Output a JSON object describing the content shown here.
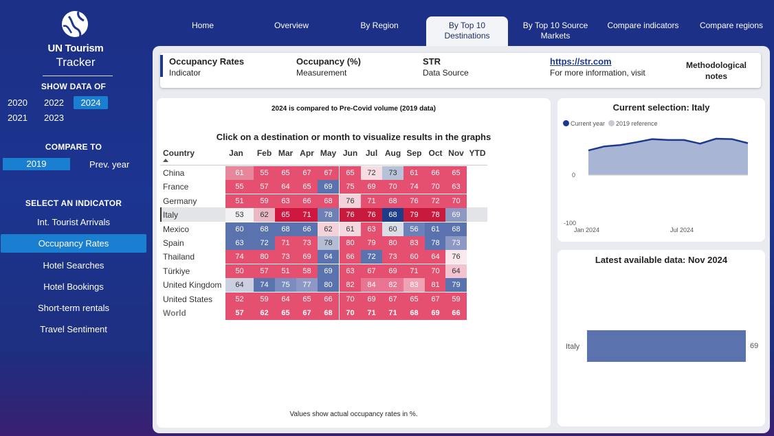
{
  "brand": {
    "line1": "UN Tourism",
    "line2": "Tracker"
  },
  "sidebar": {
    "show_data_title": "SHOW DATA OF",
    "years": [
      "2020",
      "2022",
      "2024",
      "2021",
      "2023"
    ],
    "active_year": "2024",
    "compare_title": "COMPARE TO",
    "compare_selected": "2019",
    "compare_alt": "Prev. year",
    "indicator_title": "SELECT AN INDICATOR",
    "indicators": [
      "Int. Tourist Arrivals",
      "Occupancy Rates",
      "Hotel Searches",
      "Hotel Bookings",
      "Short-term rentals",
      "Travel Sentiment"
    ],
    "active_indicator": "Occupancy Rates"
  },
  "nav": {
    "tabs": [
      "Home",
      "Overview",
      "By Region",
      "By Top 10 Destinations",
      "By Top 10 Source Markets",
      "Compare indicators",
      "Compare regions"
    ],
    "active_tab": "By Top 10 Destinations"
  },
  "info": {
    "indicator_value": "Occupancy Rates",
    "indicator_label": "Indicator",
    "measurement_value": "Occupancy (%)",
    "measurement_label": "Measurement",
    "source_value": "STR",
    "source_label": "Data Source",
    "link_text": "https://str.com",
    "link_label": "For more information, visit",
    "notes_button": "Methodological notes"
  },
  "table": {
    "subnote": "2024 is compared to Pre-Covid volume (2019 data)",
    "heading": "Click on a destination or month to visualize results in the graphs",
    "footnote": "Values show actual occupancy rates in %.",
    "country_header": "Country",
    "months": [
      "Jan",
      "Feb",
      "Mar",
      "Apr",
      "May",
      "Jun",
      "Jul",
      "Aug",
      "Sep",
      "Oct",
      "Nov",
      "YTD"
    ],
    "selected_country": "Italy",
    "rows": [
      {
        "country": "China",
        "values": [
          61,
          55,
          65,
          67,
          67,
          65,
          72,
          73,
          61,
          66,
          65
        ],
        "colors": [
          "#e6879c",
          "#e54f70",
          "#e54f70",
          "#e54f70",
          "#e54f70",
          "#e54f70",
          "#f6dde3",
          "#b7c2d8",
          "#e54f70",
          "#e54f70",
          "#e54f70"
        ]
      },
      {
        "country": "France",
        "values": [
          55,
          57,
          64,
          65,
          69,
          75,
          69,
          70,
          74,
          70,
          63
        ],
        "colors": [
          "#e54f70",
          "#e54f70",
          "#e54f70",
          "#e54f70",
          "#5a73ae",
          "#e54f70",
          "#e54f70",
          "#e54f70",
          "#e54f70",
          "#e54f70",
          "#e54f70"
        ]
      },
      {
        "country": "Germany",
        "values": [
          51,
          59,
          63,
          66,
          68,
          76,
          71,
          68,
          76,
          72,
          70
        ],
        "colors": [
          "#e54f70",
          "#e54f70",
          "#e54f70",
          "#e54f70",
          "#e54f70",
          "#f3d2da",
          "#e54f70",
          "#e54f70",
          "#e54f70",
          "#e54f70",
          "#e54f70"
        ]
      },
      {
        "country": "Italy",
        "values": [
          53,
          62,
          65,
          71,
          78,
          76,
          76,
          68,
          79,
          78,
          69
        ],
        "colors": [
          "#f2f2f4",
          "#e8b8c4",
          "#d0173f",
          "#d0173f",
          "#6f80b7",
          "#c81a3c",
          "#c81a3c",
          "#1d3d8a",
          "#c81a3c",
          "#c81a3c",
          "#8d98c4"
        ]
      },
      {
        "country": "Mexico",
        "values": [
          60,
          68,
          68,
          66,
          62,
          61,
          63,
          60,
          56,
          61,
          68
        ],
        "colors": [
          "#5a73ae",
          "#5a73ae",
          "#5a73ae",
          "#5a73ae",
          "#f4d2da",
          "#f5d8df",
          "#e54f70",
          "#dcdee6",
          "#6b81b9",
          "#5a73ae",
          "#5a73ae"
        ]
      },
      {
        "country": "Spain",
        "values": [
          63,
          72,
          71,
          73,
          78,
          80,
          79,
          80,
          83,
          78,
          73
        ],
        "colors": [
          "#5a73ae",
          "#5a73ae",
          "#e54f70",
          "#e54f70",
          "#b5bdd6",
          "#e54f70",
          "#e54f70",
          "#e54f70",
          "#e54f70",
          "#5a73ae",
          "#8d98c4"
        ]
      },
      {
        "country": "Thailand",
        "values": [
          74,
          80,
          73,
          69,
          64,
          66,
          72,
          73,
          60,
          64,
          76
        ],
        "colors": [
          "#e54f70",
          "#e54f70",
          "#e54f70",
          "#e54f70",
          "#5a73ae",
          "#e54f70",
          "#5a73ae",
          "#e54f70",
          "#e54f70",
          "#e54f70",
          "#f9e9ed"
        ]
      },
      {
        "country": "Türkiye",
        "values": [
          50,
          57,
          51,
          58,
          69,
          63,
          67,
          69,
          71,
          70,
          64
        ],
        "colors": [
          "#e54f70",
          "#e54f70",
          "#e54f70",
          "#e54f70",
          "#5a73ae",
          "#e54f70",
          "#e54f70",
          "#e54f70",
          "#e54f70",
          "#e54f70",
          "#f3c3cf"
        ]
      },
      {
        "country": "United Kingdom",
        "values": [
          64,
          74,
          75,
          77,
          80,
          82,
          84,
          82,
          83,
          81,
          79
        ],
        "colors": [
          "#cbd0e0",
          "#5a73ae",
          "#7b8cc0",
          "#8d98c4",
          "#5a73ae",
          "#e54f70",
          "#e87591",
          "#e87591",
          "#eea2b3",
          "#e54f70",
          "#5a73ae"
        ]
      },
      {
        "country": "United States",
        "values": [
          52,
          59,
          64,
          65,
          66,
          70,
          69,
          67,
          65,
          67,
          59
        ],
        "colors": [
          "#e54f70",
          "#e54f70",
          "#e54f70",
          "#e54f70",
          "#e54f70",
          "#e54f70",
          "#e54f70",
          "#e54f70",
          "#e54f70",
          "#e54f70",
          "#e54f70"
        ]
      },
      {
        "country": "World",
        "values": [
          57,
          62,
          65,
          67,
          68,
          70,
          71,
          71,
          68,
          69,
          66
        ],
        "colors": [
          "#e54f70",
          "#e54f70",
          "#e54f70",
          "#e54f70",
          "#e54f70",
          "#e54f70",
          "#e54f70",
          "#e54f70",
          "#e54f70",
          "#e54f70",
          "#e54f70"
        ]
      }
    ]
  },
  "chart1_title": "Current selection: Italy",
  "chart2_title": "Latest available data: Nov 2024",
  "chart_data": [
    {
      "type": "area",
      "title": "Current selection: Italy",
      "legend": [
        "Current year",
        "2019 reference"
      ],
      "series_colors": [
        "#1b3a8f",
        "#c9cbd0"
      ],
      "y_ticks": [
        "0",
        "-100"
      ],
      "x_ticks": [
        "Jan 2024",
        "Jul 2024"
      ],
      "ylim": [
        -100,
        100
      ],
      "x": [
        "Jan",
        "Feb",
        "Mar",
        "Apr",
        "May",
        "Jun",
        "Jul",
        "Aug",
        "Sep",
        "Oct",
        "Nov"
      ],
      "series": [
        {
          "name": "Current year",
          "values": [
            53,
            62,
            65,
            71,
            78,
            76,
            76,
            68,
            79,
            78,
            69
          ]
        },
        {
          "name": "2019 reference",
          "values": [
            0,
            0,
            0,
            0,
            0,
            0,
            0,
            0,
            0,
            0,
            0
          ]
        }
      ]
    },
    {
      "type": "bar",
      "title": "Latest available data: Nov 2024",
      "categories": [
        "Italy"
      ],
      "values": [
        69
      ],
      "labels": [
        "69"
      ],
      "xlim": [
        0,
        74
      ],
      "color": "#5a73ae"
    }
  ]
}
